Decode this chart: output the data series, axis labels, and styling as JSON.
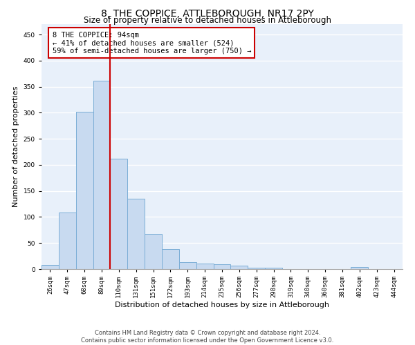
{
  "title": "8, THE COPPICE, ATTLEBOROUGH, NR17 2PY",
  "subtitle": "Size of property relative to detached houses in Attleborough",
  "xlabel": "Distribution of detached houses by size in Attleborough",
  "ylabel": "Number of detached properties",
  "bar_color": "#c8daf0",
  "bar_edge_color": "#7aadd6",
  "background_color": "#e8f0fa",
  "grid_color": "#ffffff",
  "vline_color": "#cc0000",
  "vline_x": 3.5,
  "annotation_line1": "8 THE COPPICE: 94sqm",
  "annotation_line2": "← 41% of detached houses are smaller (524)",
  "annotation_line3": "59% of semi-detached houses are larger (750) →",
  "annotation_box_color": "#cc0000",
  "categories": [
    "26sqm",
    "47sqm",
    "68sqm",
    "89sqm",
    "110sqm",
    "131sqm",
    "151sqm",
    "172sqm",
    "193sqm",
    "214sqm",
    "235sqm",
    "256sqm",
    "277sqm",
    "298sqm",
    "319sqm",
    "340sqm",
    "360sqm",
    "381sqm",
    "402sqm",
    "423sqm",
    "444sqm"
  ],
  "values": [
    8,
    108,
    302,
    362,
    212,
    135,
    68,
    38,
    13,
    10,
    9,
    6,
    2,
    2,
    0,
    0,
    0,
    0,
    4,
    0,
    0
  ],
  "ylim": [
    0,
    470
  ],
  "yticks": [
    0,
    50,
    100,
    150,
    200,
    250,
    300,
    350,
    400,
    450
  ],
  "footnote_line1": "Contains HM Land Registry data © Crown copyright and database right 2024.",
  "footnote_line2": "Contains public sector information licensed under the Open Government Licence v3.0.",
  "title_fontsize": 10,
  "subtitle_fontsize": 8.5,
  "tick_fontsize": 6.5,
  "ylabel_fontsize": 8,
  "xlabel_fontsize": 8,
  "annotation_fontsize": 7.5,
  "footnote_fontsize": 6
}
